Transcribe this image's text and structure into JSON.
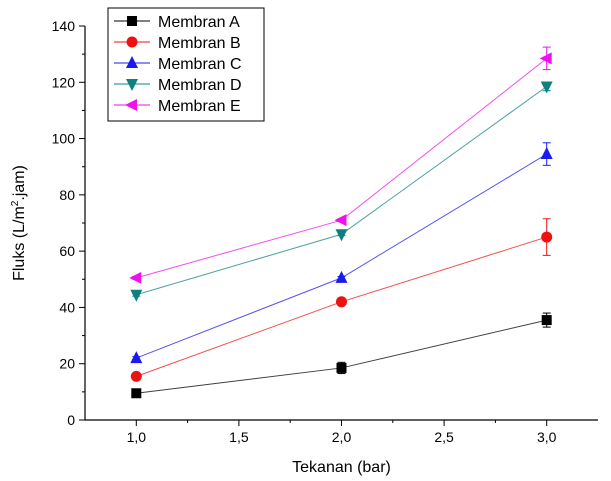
{
  "chart_data": {
    "type": "line",
    "xlabel": "Tekanan (bar)",
    "ylabel_main": "Fluks (L/m",
    "ylabel_sup": "2",
    "ylabel_tail": ".jam)",
    "xlim": [
      0.75,
      3.25
    ],
    "ylim": [
      0,
      140
    ],
    "x_ticks": [
      1.0,
      1.5,
      2.0,
      2.5,
      3.0
    ],
    "x_tick_labels": [
      "1,0",
      "1,5",
      "2,0",
      "2,5",
      "3,0"
    ],
    "y_ticks": [
      0,
      20,
      40,
      60,
      80,
      100,
      120,
      140
    ],
    "y_tick_labels": [
      "0",
      "20",
      "40",
      "60",
      "80",
      "100",
      "120",
      "140"
    ],
    "legend_position": "top-left",
    "grid": false,
    "x": [
      1.0,
      2.0,
      3.0
    ],
    "series": [
      {
        "name": "Membran A",
        "marker": "square",
        "color": "#000000",
        "values": [
          9.5,
          18.5,
          35.5
        ],
        "errors": [
          0.5,
          2.0,
          2.5
        ]
      },
      {
        "name": "Membran B",
        "marker": "circle",
        "color": "#ee1111",
        "values": [
          15.5,
          42,
          65
        ],
        "errors": [
          0.5,
          0.5,
          6.5
        ]
      },
      {
        "name": "Membran C",
        "marker": "triangle-up",
        "color": "#1a1aee",
        "values": [
          22,
          50.5,
          94.5
        ],
        "errors": [
          0.5,
          0.5,
          4.0
        ]
      },
      {
        "name": "Membran D",
        "marker": "triangle-down",
        "color": "#0e8080",
        "values": [
          44.5,
          66,
          118.5
        ],
        "errors": [
          0.5,
          0.5,
          1.5
        ]
      },
      {
        "name": "Membran E",
        "marker": "triangle-left",
        "color": "#ee11ee",
        "values": [
          50.5,
          71,
          128.5
        ],
        "errors": [
          0.5,
          0.5,
          4.0
        ]
      }
    ]
  }
}
